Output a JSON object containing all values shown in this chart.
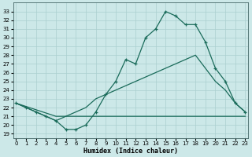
{
  "title": "",
  "xlabel": "Humidex (Indice chaleur)",
  "x_ticks": [
    0,
    1,
    2,
    3,
    4,
    5,
    6,
    7,
    8,
    9,
    10,
    11,
    12,
    13,
    14,
    15,
    16,
    17,
    18,
    19,
    20,
    21,
    22,
    23
  ],
  "y_ticks": [
    19,
    20,
    21,
    22,
    23,
    24,
    25,
    26,
    27,
    28,
    29,
    30,
    31,
    32,
    33
  ],
  "ylim": [
    18.5,
    34.0
  ],
  "xlim": [
    -0.3,
    23.3
  ],
  "bg_color": "#cce8e8",
  "line_color": "#1a6b5a",
  "grid_color": "#aacfcf",
  "line1_x": [
    0,
    1,
    2,
    3,
    4,
    5,
    6,
    7,
    8,
    9,
    10,
    11,
    12,
    13,
    14,
    15,
    16,
    17,
    18,
    19,
    20,
    21,
    22,
    23
  ],
  "line1_y": [
    22.5,
    22.0,
    21.5,
    21.0,
    20.5,
    19.5,
    19.5,
    20.0,
    21.5,
    23.5,
    25.0,
    27.5,
    27.0,
    30.0,
    31.0,
    33.0,
    32.5,
    31.5,
    31.5,
    29.5,
    26.5,
    25.0,
    22.5,
    21.5
  ],
  "line2_x": [
    0,
    1,
    2,
    3,
    4,
    5,
    6,
    7,
    8,
    9,
    10,
    11,
    12,
    13,
    14,
    15,
    16,
    17,
    18,
    19,
    20,
    21,
    22,
    23
  ],
  "line2_y": [
    22.5,
    22.0,
    21.5,
    21.0,
    20.5,
    21.0,
    21.5,
    22.0,
    23.0,
    23.5,
    24.0,
    24.5,
    25.0,
    25.5,
    26.0,
    26.5,
    27.0,
    27.5,
    28.0,
    26.5,
    25.0,
    24.0,
    22.5,
    21.5
  ],
  "line3_x": [
    0,
    4,
    5,
    6,
    7,
    8,
    9,
    10,
    11,
    12,
    13,
    14,
    15,
    16,
    17,
    18,
    19,
    20,
    21,
    22,
    23
  ],
  "line3_y": [
    22.5,
    21.0,
    21.0,
    21.0,
    21.0,
    21.0,
    21.0,
    21.0,
    21.0,
    21.0,
    21.0,
    21.0,
    21.0,
    21.0,
    21.0,
    21.0,
    21.0,
    21.0,
    21.0,
    21.0,
    21.0
  ]
}
